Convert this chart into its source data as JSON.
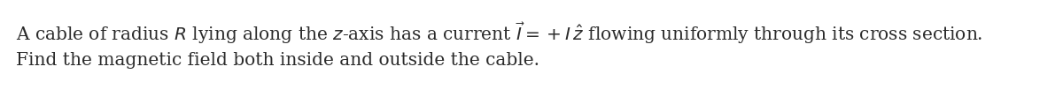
{
  "line1": "A cable of radius $R$ lying along the $z$-axis has a current $\\vec{I} = +I\\,\\hat{z}$ flowing uniformly through its cross section.",
  "line2": "Find the magnetic field both inside and outside the cable.",
  "background_color": "#ffffff",
  "text_color": "#2b2b2b",
  "fontsize": 14.5,
  "fig_width": 12.0,
  "fig_height": 1.01,
  "dpi": 100
}
